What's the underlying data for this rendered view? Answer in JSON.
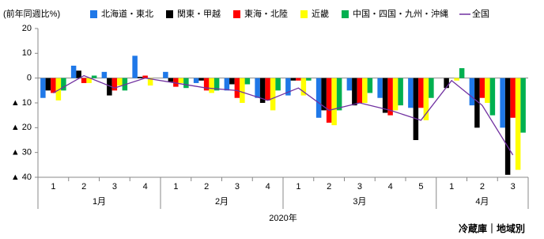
{
  "chart_data": {
    "type": "bar",
    "ylabel": "(前年同週比%)",
    "xlabel": "2020年",
    "note": "冷蔵庫｜地域別",
    "groups": [
      {
        "label": "1月",
        "categories": [
          "1",
          "2",
          "3",
          "4"
        ]
      },
      {
        "label": "2月",
        "categories": [
          "1",
          "2",
          "3",
          "4"
        ]
      },
      {
        "label": "3月",
        "categories": [
          "1",
          "2",
          "3",
          "4",
          "5"
        ]
      },
      {
        "label": "4月",
        "categories": [
          "1",
          "2",
          "3"
        ]
      }
    ],
    "ylim": [
      -40,
      20
    ],
    "yticks": [
      {
        "value": -40,
        "label": "▲ 40"
      },
      {
        "value": -30,
        "label": "▲ 30"
      },
      {
        "value": -20,
        "label": "▲ 20"
      },
      {
        "value": -10,
        "label": "▲ 10"
      },
      0,
      10,
      20
    ],
    "series": [
      {
        "name": "北海道・東北",
        "color": "#1f78e8",
        "type": "bar",
        "values": [
          -8,
          5,
          2.5,
          9,
          2.5,
          -2,
          -5,
          -8,
          -7,
          -16,
          -5,
          -8,
          -12,
          0,
          -11,
          -20
        ]
      },
      {
        "name": "関東・甲越",
        "color": "#000000",
        "type": "bar",
        "values": [
          -5,
          3,
          -7,
          0.5,
          -1.5,
          -1,
          -2.5,
          -10,
          -1,
          -13,
          -11,
          -14,
          -25,
          -4,
          -20,
          -39
        ]
      },
      {
        "name": "東海・北陸",
        "color": "#ff0000",
        "type": "bar",
        "values": [
          -6,
          -2,
          -5,
          1,
          -3.5,
          -5,
          -8,
          -9,
          -1,
          -18,
          -10,
          -15,
          -12,
          0,
          -8,
          -16
        ]
      },
      {
        "name": "近畿",
        "color": "#ffff00",
        "type": "bar",
        "values": [
          -9,
          -2,
          -3,
          -3,
          -2,
          -6,
          -10,
          -13,
          -7,
          -19,
          -10,
          -13,
          -17,
          -1,
          -10,
          -37
        ]
      },
      {
        "name": "中国・四国・九州・沖縄",
        "color": "#00b050",
        "type": "bar",
        "values": [
          -5,
          1,
          -5,
          0,
          -4,
          -5,
          -2.5,
          -5,
          -1,
          -13,
          -6,
          -11,
          -8,
          4,
          -15,
          -22
        ]
      },
      {
        "name": "全国",
        "color": "#7030a0",
        "type": "line",
        "values": [
          -6,
          1,
          -4,
          0,
          -2,
          -4,
          -5,
          -9,
          -4,
          -13,
          -10,
          -13,
          -17,
          -1,
          -11,
          -31
        ]
      }
    ]
  }
}
